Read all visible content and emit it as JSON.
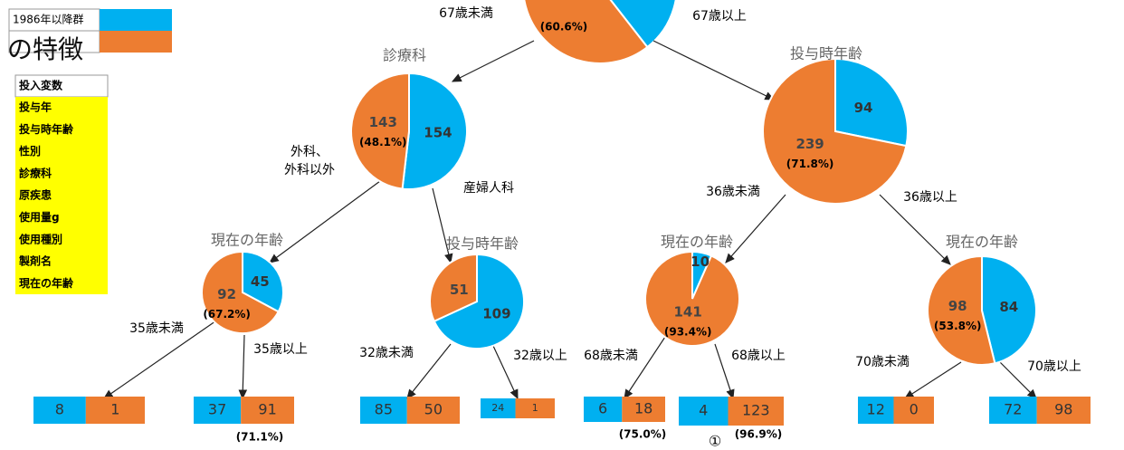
{
  "legend": [
    {
      "label": "1986年以降群",
      "color": "#00b0f0"
    },
    {
      "color": "#ed7d31"
    }
  ],
  "title": "の特徴",
  "variables": {
    "header": "投入変数",
    "items": [
      "投与年",
      "投与時年齢",
      "性別",
      "診療科",
      "原疾患",
      "使用量g",
      "使用種別",
      "製剤名",
      "現在の年齢"
    ]
  },
  "root": {
    "percent": "(60.6%)",
    "left": "67歳未満",
    "right": "67歳以上"
  },
  "nodes": [
    {
      "title": "診療科",
      "blue": 154,
      "orange": 143,
      "percent": "(48.1%)",
      "left": [
        "外科、",
        "外科以外"
      ],
      "right": "産婦人科"
    },
    {
      "title": "投与時年齢",
      "blue": 94,
      "orange": 239,
      "percent": "(71.8%)",
      "left": "36歳未満",
      "right": "36歳以上"
    },
    {
      "title": "現在の年齢",
      "blue": 45,
      "orange": 92,
      "percent": "(67.2%)",
      "left": "35歳未満",
      "right": "35歳以上"
    },
    {
      "title": "投与時年齢",
      "blue": 109,
      "orange": 51,
      "left": "32歳未満",
      "right": "32歳以上"
    },
    {
      "title": "現在の年齢",
      "blue": 10,
      "orange": 141,
      "percent": "(93.4%)",
      "left": "68歳未満",
      "right": "68歳以上"
    },
    {
      "title": "現在の年齢",
      "blue": 84,
      "orange": 98,
      "percent": "(53.8%)",
      "left": "70歳未満",
      "right": "70歳以上"
    }
  ],
  "leaves": [
    {
      "blue": 8,
      "orange": 1
    },
    {
      "blue": 37,
      "orange": 91,
      "percent": "(71.1%)"
    },
    {
      "blue": 85,
      "orange": 50
    },
    {
      "blue": 24,
      "orange": 1
    },
    {
      "blue": 6,
      "orange": 18,
      "percent": "(75.0%)"
    },
    {
      "blue": 4,
      "orange": 123,
      "percent": "(96.9%)",
      "mark": "①"
    },
    {
      "blue": 12,
      "orange": 0
    },
    {
      "blue": 72,
      "orange": 98
    }
  ]
}
